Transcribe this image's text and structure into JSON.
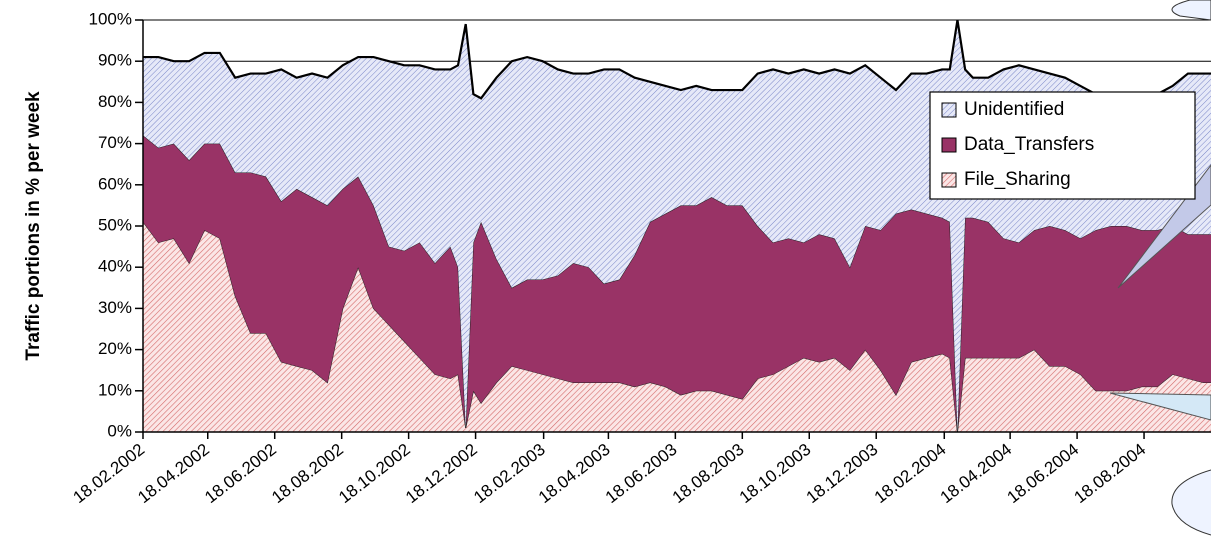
{
  "chart_data": {
    "type": "stacked_area",
    "y_label": "Traffic portions in % per week",
    "x": [
      "2002-02-18",
      "2002-03-04",
      "2002-03-18",
      "2002-04-01",
      "2002-04-15",
      "2002-04-29",
      "2002-05-13",
      "2002-05-27",
      "2002-06-10",
      "2002-06-24",
      "2002-07-08",
      "2002-07-22",
      "2002-08-05",
      "2002-08-19",
      "2002-09-02",
      "2002-09-16",
      "2002-09-30",
      "2002-10-14",
      "2002-10-28",
      "2002-11-11",
      "2002-11-25",
      "2002-12-02",
      "2002-12-09",
      "2002-12-16",
      "2002-12-23",
      "2003-01-06",
      "2003-01-20",
      "2003-02-03",
      "2003-02-17",
      "2003-03-03",
      "2003-03-17",
      "2003-03-31",
      "2003-04-14",
      "2003-04-28",
      "2003-05-12",
      "2003-05-26",
      "2003-06-09",
      "2003-06-23",
      "2003-07-07",
      "2003-07-21",
      "2003-08-04",
      "2003-08-18",
      "2003-09-01",
      "2003-09-15",
      "2003-09-29",
      "2003-10-13",
      "2003-10-27",
      "2003-11-10",
      "2003-11-24",
      "2003-12-08",
      "2003-12-22",
      "2004-01-05",
      "2004-01-19",
      "2004-02-02",
      "2004-02-16",
      "2004-02-23",
      "2004-03-01",
      "2004-03-08",
      "2004-03-15",
      "2004-03-29",
      "2004-04-12",
      "2004-04-26",
      "2004-05-10",
      "2004-05-24",
      "2004-06-07",
      "2004-06-21",
      "2004-07-05",
      "2004-07-19",
      "2004-08-02",
      "2004-08-16",
      "2004-08-30",
      "2004-09-13",
      "2004-09-27",
      "2004-10-11",
      "2004-10-18"
    ],
    "series": [
      {
        "name": "File_Sharing",
        "color": "#e8a0a0",
        "values": [
          51,
          46,
          47,
          41,
          49,
          47,
          33,
          24,
          24,
          17,
          16,
          15,
          12,
          30,
          40,
          30,
          26,
          22,
          18,
          14,
          13,
          14,
          1,
          10,
          7,
          12,
          16,
          15,
          14,
          13,
          12,
          12,
          12,
          12,
          11,
          12,
          11,
          9,
          10,
          10,
          9,
          8,
          13,
          14,
          16,
          18,
          17,
          18,
          15,
          20,
          15,
          9,
          17,
          18,
          19,
          18,
          0,
          18,
          18,
          18,
          18,
          18,
          20,
          16,
          16,
          14,
          10,
          10,
          10,
          11,
          11,
          14,
          13,
          12,
          12
        ]
      },
      {
        "name": "Data_Transfers",
        "color": "#993366",
        "values": [
          21,
          23,
          23,
          25,
          21,
          23,
          30,
          39,
          38,
          39,
          43,
          42,
          43,
          29,
          22,
          25,
          19,
          22,
          28,
          27,
          32,
          26,
          0,
          36,
          44,
          30,
          19,
          22,
          23,
          25,
          29,
          28,
          24,
          25,
          32,
          39,
          42,
          46,
          45,
          47,
          46,
          47,
          37,
          32,
          31,
          28,
          31,
          29,
          25,
          30,
          34,
          44,
          37,
          35,
          33,
          33,
          0,
          34,
          34,
          33,
          29,
          28,
          29,
          34,
          33,
          33,
          39,
          40,
          40,
          38,
          38,
          36,
          35,
          36,
          36
        ]
      },
      {
        "name": "Unidentified",
        "color": "#c8cff0",
        "values": [
          19,
          22,
          20,
          24,
          22,
          22,
          23,
          24,
          25,
          32,
          27,
          30,
          31,
          30,
          29,
          36,
          45,
          45,
          43,
          47,
          43,
          49,
          98,
          36,
          30,
          44,
          55,
          54,
          53,
          50,
          46,
          47,
          52,
          51,
          43,
          34,
          31,
          28,
          29,
          26,
          28,
          28,
          37,
          42,
          40,
          42,
          39,
          41,
          47,
          39,
          37,
          30,
          33,
          34,
          36,
          37,
          100,
          36,
          34,
          35,
          41,
          43,
          39,
          37,
          37,
          37,
          33,
          32,
          32,
          32,
          33,
          34,
          39,
          39,
          39
        ]
      }
    ],
    "xlim": [
      "2002-02-18",
      "2004-10-18"
    ],
    "xticks": [
      {
        "value": "2002-02-18",
        "label": "18.02.2002"
      },
      {
        "value": "2002-04-18",
        "label": "18.04.2002"
      },
      {
        "value": "2002-06-18",
        "label": "18.06.2002"
      },
      {
        "value": "2002-08-18",
        "label": "18.08.2002"
      },
      {
        "value": "2002-10-18",
        "label": "18.10.2002"
      },
      {
        "value": "2002-12-18",
        "label": "18.12.2002"
      },
      {
        "value": "2003-02-18",
        "label": "18.02.2003"
      },
      {
        "value": "2003-04-18",
        "label": "18.04.2003"
      },
      {
        "value": "2003-06-18",
        "label": "18.06.2003"
      },
      {
        "value": "2003-08-18",
        "label": "18.08.2003"
      },
      {
        "value": "2003-10-18",
        "label": "18.10.2003"
      },
      {
        "value": "2003-12-18",
        "label": "18.12.2003"
      },
      {
        "value": "2004-02-18",
        "label": "18.02.2004"
      },
      {
        "value": "2004-04-18",
        "label": "18.04.2004"
      },
      {
        "value": "2004-06-18",
        "label": "18.06.2004"
      },
      {
        "value": "2004-08-18",
        "label": "18.08.2004"
      }
    ],
    "ylim": [
      0,
      100
    ],
    "yticks": [
      {
        "value": 0,
        "label": "0%"
      },
      {
        "value": 10,
        "label": "10%"
      },
      {
        "value": 20,
        "label": "20%"
      },
      {
        "value": 30,
        "label": "30%"
      },
      {
        "value": 40,
        "label": "40%"
      },
      {
        "value": 50,
        "label": "50%"
      },
      {
        "value": 60,
        "label": "60%"
      },
      {
        "value": 70,
        "label": "70%"
      },
      {
        "value": 80,
        "label": "80%"
      },
      {
        "value": 90,
        "label": "90%"
      },
      {
        "value": 100,
        "label": "100%"
      }
    ],
    "grid": true,
    "legend": "upper right"
  }
}
